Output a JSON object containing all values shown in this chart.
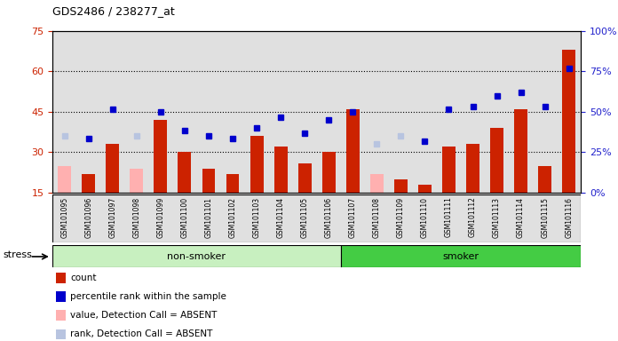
{
  "title": "GDS2486 / 238277_at",
  "samples": [
    "GSM101095",
    "GSM101096",
    "GSM101097",
    "GSM101098",
    "GSM101099",
    "GSM101100",
    "GSM101101",
    "GSM101102",
    "GSM101103",
    "GSM101104",
    "GSM101105",
    "GSM101106",
    "GSM101107",
    "GSM101108",
    "GSM101109",
    "GSM101110",
    "GSM101111",
    "GSM101112",
    "GSM101113",
    "GSM101114",
    "GSM101115",
    "GSM101116"
  ],
  "count_values": [
    25,
    22,
    33,
    24,
    42,
    30,
    24,
    22,
    36,
    32,
    26,
    30,
    46,
    22,
    20,
    18,
    32,
    33,
    39,
    46,
    25,
    68
  ],
  "count_absent": [
    true,
    false,
    false,
    true,
    false,
    false,
    false,
    false,
    false,
    false,
    false,
    false,
    false,
    true,
    false,
    false,
    false,
    false,
    false,
    false,
    false,
    false
  ],
  "rank_values": [
    36,
    35,
    46,
    36,
    45,
    38,
    36,
    35,
    39,
    43,
    37,
    42,
    45,
    33,
    36,
    34,
    46,
    47,
    51,
    52,
    47,
    61
  ],
  "rank_absent": [
    true,
    false,
    false,
    true,
    false,
    false,
    false,
    false,
    false,
    false,
    false,
    false,
    false,
    true,
    true,
    false,
    false,
    false,
    false,
    false,
    false,
    false
  ],
  "non_smoker_count": 12,
  "smoker_count": 10,
  "ylim_left": [
    15,
    75
  ],
  "ylim_right": [
    0,
    100
  ],
  "yticks_left": [
    15,
    30,
    45,
    60,
    75
  ],
  "yticks_right": [
    0,
    25,
    50,
    75,
    100
  ],
  "bg_color": "#e0e0e0",
  "bar_color_present": "#cc2200",
  "bar_color_absent": "#ffb0b0",
  "dot_color_present": "#0000cc",
  "dot_color_absent": "#b8c4e0",
  "non_smoker_color": "#c8f0c0",
  "smoker_color": "#44cc44",
  "stress_label": "stress",
  "non_smoker_label": "non-smoker",
  "smoker_label": "smoker"
}
